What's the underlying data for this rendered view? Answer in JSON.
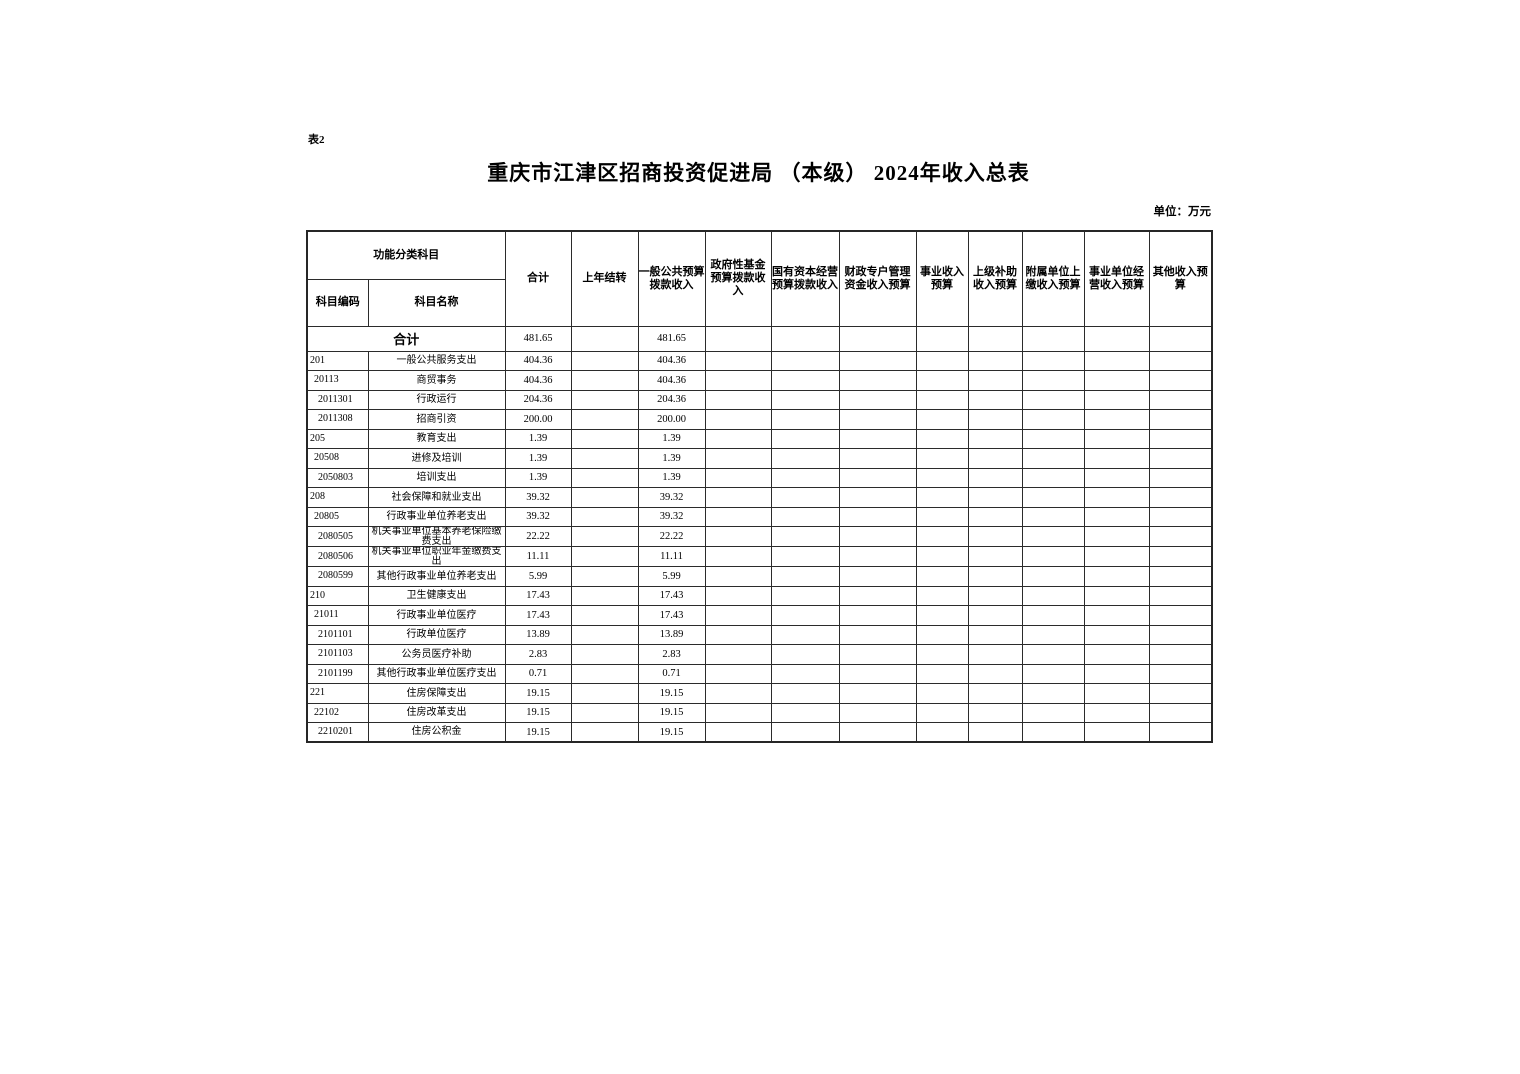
{
  "page": {
    "tag": "表2",
    "title": "重庆市江津区招商投资促进局 （本级） 2024年收入总表",
    "unit_label": "单位：万元"
  },
  "table": {
    "group_header": "功能分类科目",
    "code_header": "科目编码",
    "name_header": "科目名称",
    "value_columns": [
      "合计",
      "上年结转",
      "一般公共预算拨款收入",
      "政府性基金预算拨款收入",
      "国有资本经营预算拨款收入",
      "财政专户管理资金收入预算",
      "事业收入预算",
      "上级补助收入预算",
      "附属单位上缴收入预算",
      "事业单位经营收入预算",
      "其他收入预算"
    ],
    "total_row": {
      "label": "合计",
      "total": "481.65",
      "general_budget": "481.65"
    },
    "rows": [
      {
        "code": "201",
        "level": 1,
        "name": "一般公共服务支出",
        "total": "404.36",
        "general_budget": "404.36"
      },
      {
        "code": "20113",
        "level": 2,
        "name": "商贸事务",
        "total": "404.36",
        "general_budget": "404.36"
      },
      {
        "code": "2011301",
        "level": 3,
        "name": "行政运行",
        "total": "204.36",
        "general_budget": "204.36"
      },
      {
        "code": "2011308",
        "level": 3,
        "name": "招商引资",
        "total": "200.00",
        "general_budget": "200.00"
      },
      {
        "code": "205",
        "level": 1,
        "name": "教育支出",
        "total": "1.39",
        "general_budget": "1.39"
      },
      {
        "code": "20508",
        "level": 2,
        "name": "进修及培训",
        "total": "1.39",
        "general_budget": "1.39"
      },
      {
        "code": "2050803",
        "level": 3,
        "name": "培训支出",
        "total": "1.39",
        "general_budget": "1.39"
      },
      {
        "code": "208",
        "level": 1,
        "name": "社会保障和就业支出",
        "total": "39.32",
        "general_budget": "39.32"
      },
      {
        "code": "20805",
        "level": 2,
        "name": "行政事业单位养老支出",
        "total": "39.32",
        "general_budget": "39.32"
      },
      {
        "code": "2080505",
        "level": 3,
        "name": "机关事业单位基本养老保险缴费支出",
        "total": "22.22",
        "general_budget": "22.22"
      },
      {
        "code": "2080506",
        "level": 3,
        "name": "机关事业单位职业年金缴费支出",
        "total": "11.11",
        "general_budget": "11.11"
      },
      {
        "code": "2080599",
        "level": 3,
        "name": "其他行政事业单位养老支出",
        "total": "5.99",
        "general_budget": "5.99"
      },
      {
        "code": "210",
        "level": 1,
        "name": "卫生健康支出",
        "total": "17.43",
        "general_budget": "17.43"
      },
      {
        "code": "21011",
        "level": 2,
        "name": "行政事业单位医疗",
        "total": "17.43",
        "general_budget": "17.43"
      },
      {
        "code": "2101101",
        "level": 3,
        "name": "行政单位医疗",
        "total": "13.89",
        "general_budget": "13.89"
      },
      {
        "code": "2101103",
        "level": 3,
        "name": "公务员医疗补助",
        "total": "2.83",
        "general_budget": "2.83"
      },
      {
        "code": "2101199",
        "level": 3,
        "name": "其他行政事业单位医疗支出",
        "total": "0.71",
        "general_budget": "0.71"
      },
      {
        "code": "221",
        "level": 1,
        "name": "住房保障支出",
        "total": "19.15",
        "general_budget": "19.15"
      },
      {
        "code": "22102",
        "level": 2,
        "name": "住房改革支出",
        "total": "19.15",
        "general_budget": "19.15"
      },
      {
        "code": "2210201",
        "level": 3,
        "name": "住房公积金",
        "total": "19.15",
        "general_budget": "19.15"
      }
    ]
  }
}
